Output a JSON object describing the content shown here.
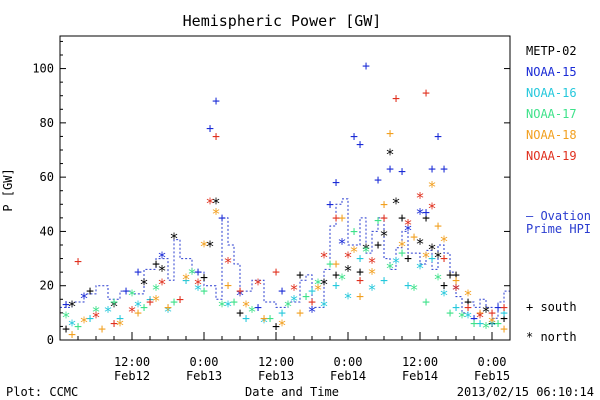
{
  "chart_data": {
    "type": "scatter",
    "title": "Hemispheric Power [GW]",
    "ylabel": "P [GW]",
    "xlabel": "Date and Time",
    "ylim": [
      0,
      112
    ],
    "xlim_hours": [
      0,
      75
    ],
    "yticks": [
      "0",
      "20",
      "40",
      "60",
      "80",
      "100"
    ],
    "xticks": [
      {
        "time": "12:00",
        "date": "Feb12",
        "hour": 12
      },
      {
        "time": "0:00",
        "date": "Feb13",
        "hour": 24
      },
      {
        "time": "12:00",
        "date": "Feb13",
        "hour": 36
      },
      {
        "time": "0:00",
        "date": "Feb14",
        "hour": 48
      },
      {
        "time": "12:00",
        "date": "Feb14",
        "hour": 60
      },
      {
        "time": "0:00",
        "date": "Feb15",
        "hour": 72
      }
    ],
    "series": [
      {
        "name": "METP-02",
        "color": "#000000"
      },
      {
        "name": "NOAA-15",
        "color": "#1a2bd6"
      },
      {
        "name": "NOAA-16",
        "color": "#25c8dc"
      },
      {
        "name": "NOAA-17",
        "color": "#3ee28a"
      },
      {
        "name": "NOAA-18",
        "color": "#f2a020"
      },
      {
        "name": "NOAA-19",
        "color": "#e0301e"
      }
    ],
    "ovation": {
      "label_line1": "— Ovation",
      "label_line2": "Prime HPI",
      "color": "#2a3cd0",
      "steps": [
        [
          0,
          12
        ],
        [
          2,
          14
        ],
        [
          4,
          17
        ],
        [
          6,
          20
        ],
        [
          8,
          15
        ],
        [
          10,
          18
        ],
        [
          12,
          17
        ],
        [
          14,
          26
        ],
        [
          16,
          30
        ],
        [
          18,
          22
        ],
        [
          19,
          37
        ],
        [
          20,
          30
        ],
        [
          22,
          25
        ],
        [
          24,
          20
        ],
        [
          26,
          15
        ],
        [
          27,
          45
        ],
        [
          28,
          35
        ],
        [
          29,
          28
        ],
        [
          30,
          18
        ],
        [
          32,
          22
        ],
        [
          34,
          14
        ],
        [
          36,
          12
        ],
        [
          38,
          14
        ],
        [
          40,
          22
        ],
        [
          41,
          24
        ],
        [
          42,
          12
        ],
        [
          44,
          26
        ],
        [
          45,
          42
        ],
        [
          46,
          50
        ],
        [
          47,
          52
        ],
        [
          48,
          35
        ],
        [
          50,
          45
        ],
        [
          51,
          32
        ],
        [
          52,
          40
        ],
        [
          53,
          45
        ],
        [
          54,
          30
        ],
        [
          55,
          26
        ],
        [
          56,
          34
        ],
        [
          57,
          40
        ],
        [
          58,
          32
        ],
        [
          60,
          28
        ],
        [
          61,
          33
        ],
        [
          62,
          26
        ],
        [
          63,
          35
        ],
        [
          64,
          32
        ],
        [
          65,
          25
        ],
        [
          66,
          16
        ],
        [
          67,
          10
        ],
        [
          68,
          14
        ],
        [
          69,
          12
        ],
        [
          70,
          15
        ],
        [
          71,
          12
        ],
        [
          72,
          8
        ],
        [
          73,
          14
        ],
        [
          74,
          18
        ],
        [
          75,
          18
        ]
      ]
    },
    "symbol_legend": [
      {
        "symbol": "+",
        "label": "south"
      },
      {
        "symbol": "*",
        "label": "north"
      }
    ],
    "points": {
      "METP-02": [
        [
          1,
          4,
          "+"
        ],
        [
          2,
          12,
          "*"
        ],
        [
          5,
          18,
          "+"
        ],
        [
          9,
          12,
          "*"
        ],
        [
          14,
          20,
          "*"
        ],
        [
          16,
          28,
          "+"
        ],
        [
          17,
          25,
          "*"
        ],
        [
          19,
          37,
          "*"
        ],
        [
          24,
          23,
          "+"
        ],
        [
          25,
          34,
          "*"
        ],
        [
          26,
          50,
          "*"
        ],
        [
          30,
          10,
          "+"
        ],
        [
          36,
          5,
          "+"
        ],
        [
          40,
          24,
          "+"
        ],
        [
          44,
          20,
          "*"
        ],
        [
          46,
          24,
          "+"
        ],
        [
          48,
          25,
          "*"
        ],
        [
          50,
          25,
          "+"
        ],
        [
          51,
          33,
          "*"
        ],
        [
          53,
          35,
          "+"
        ],
        [
          54,
          38,
          "*"
        ],
        [
          55,
          68,
          "*"
        ],
        [
          56,
          50,
          "*"
        ],
        [
          57,
          45,
          "+"
        ],
        [
          58,
          30,
          "+"
        ],
        [
          60,
          35,
          "*"
        ],
        [
          61,
          45,
          "+"
        ],
        [
          62,
          33,
          "*"
        ],
        [
          63,
          30,
          "*"
        ],
        [
          64,
          20,
          "+"
        ],
        [
          65,
          24,
          "+"
        ],
        [
          66,
          24,
          "+"
        ],
        [
          68,
          14,
          "+"
        ],
        [
          71,
          10,
          "*"
        ],
        [
          72,
          6,
          "+"
        ],
        [
          74,
          8,
          "+"
        ]
      ],
      "NOAA-15": [
        [
          1,
          13,
          "+"
        ],
        [
          4,
          15,
          "*"
        ],
        [
          11,
          18,
          "+"
        ],
        [
          13,
          25,
          "+"
        ],
        [
          17,
          30,
          "*"
        ],
        [
          23,
          25,
          "+"
        ],
        [
          25,
          78,
          "+"
        ],
        [
          26,
          88,
          "+"
        ],
        [
          27,
          45,
          "+"
        ],
        [
          30,
          16,
          "*"
        ],
        [
          33,
          12,
          "+"
        ],
        [
          37,
          18,
          "+"
        ],
        [
          42,
          10,
          "*"
        ],
        [
          45,
          50,
          "+"
        ],
        [
          46,
          58,
          "+"
        ],
        [
          47,
          35,
          "*"
        ],
        [
          49,
          75,
          "+"
        ],
        [
          50,
          72,
          "+"
        ],
        [
          51,
          101,
          "+"
        ],
        [
          53,
          59,
          "+"
        ],
        [
          55,
          63,
          "+"
        ],
        [
          57,
          62,
          "+"
        ],
        [
          58,
          40,
          "*"
        ],
        [
          60,
          46,
          "*"
        ],
        [
          61,
          47,
          "+"
        ],
        [
          62,
          63,
          "+"
        ],
        [
          63,
          75,
          "+"
        ],
        [
          64,
          63,
          "+"
        ],
        [
          66,
          18,
          "*"
        ],
        [
          69,
          8,
          "+"
        ],
        [
          73,
          12,
          "+"
        ]
      ],
      "NOAA-16": [
        [
          2,
          5,
          "*"
        ],
        [
          5,
          8,
          "+"
        ],
        [
          8,
          10,
          "*"
        ],
        [
          10,
          8,
          "+"
        ],
        [
          13,
          12,
          "*"
        ],
        [
          15,
          15,
          "+"
        ],
        [
          18,
          10,
          "*"
        ],
        [
          21,
          22,
          "+"
        ],
        [
          23,
          18,
          "*"
        ],
        [
          28,
          12,
          "*"
        ],
        [
          31,
          8,
          "+"
        ],
        [
          34,
          6,
          "*"
        ],
        [
          37,
          10,
          "+"
        ],
        [
          39,
          14,
          "*"
        ],
        [
          42,
          18,
          "+"
        ],
        [
          44,
          12,
          "*"
        ],
        [
          46,
          20,
          "+"
        ],
        [
          48,
          15,
          "*"
        ],
        [
          50,
          30,
          "+"
        ],
        [
          52,
          18,
          "*"
        ],
        [
          54,
          22,
          "+"
        ],
        [
          56,
          28,
          "*"
        ],
        [
          58,
          20,
          "+"
        ],
        [
          60,
          26,
          "*"
        ],
        [
          62,
          30,
          "+"
        ],
        [
          64,
          16,
          "*"
        ],
        [
          66,
          12,
          "+"
        ],
        [
          68,
          8,
          "*"
        ],
        [
          70,
          6,
          "+"
        ],
        [
          72,
          5,
          "*"
        ],
        [
          74,
          10,
          "+"
        ]
      ],
      "NOAA-17": [
        [
          1,
          8,
          "*"
        ],
        [
          3,
          5,
          "+"
        ],
        [
          6,
          10,
          "*"
        ],
        [
          9,
          14,
          "+"
        ],
        [
          12,
          16,
          "*"
        ],
        [
          14,
          12,
          "+"
        ],
        [
          16,
          18,
          "*"
        ],
        [
          19,
          14,
          "+"
        ],
        [
          22,
          24,
          "*"
        ],
        [
          24,
          18,
          "+"
        ],
        [
          27,
          12,
          "*"
        ],
        [
          29,
          14,
          "+"
        ],
        [
          32,
          10,
          "*"
        ],
        [
          35,
          8,
          "+"
        ],
        [
          38,
          12,
          "*"
        ],
        [
          41,
          16,
          "+"
        ],
        [
          43,
          20,
          "*"
        ],
        [
          45,
          28,
          "+"
        ],
        [
          47,
          22,
          "*"
        ],
        [
          49,
          40,
          "+"
        ],
        [
          51,
          32,
          "*"
        ],
        [
          53,
          44,
          "+"
        ],
        [
          55,
          26,
          "*"
        ],
        [
          57,
          32,
          "+"
        ],
        [
          59,
          18,
          "*"
        ],
        [
          61,
          14,
          "+"
        ],
        [
          63,
          22,
          "*"
        ],
        [
          65,
          10,
          "+"
        ],
        [
          67,
          8,
          "*"
        ],
        [
          69,
          6,
          "+"
        ],
        [
          71,
          4,
          "*"
        ],
        [
          73,
          6,
          "+"
        ]
      ],
      "NOAA-18": [
        [
          2,
          2,
          "+"
        ],
        [
          4,
          6,
          "*"
        ],
        [
          7,
          4,
          "+"
        ],
        [
          10,
          5,
          "*"
        ],
        [
          13,
          10,
          "+"
        ],
        [
          16,
          14,
          "*"
        ],
        [
          18,
          12,
          "+"
        ],
        [
          21,
          22,
          "*"
        ],
        [
          24,
          34,
          "*"
        ],
        [
          26,
          46,
          "*"
        ],
        [
          28,
          20,
          "+"
        ],
        [
          31,
          12,
          "*"
        ],
        [
          34,
          8,
          "+"
        ],
        [
          37,
          5,
          "*"
        ],
        [
          40,
          10,
          "+"
        ],
        [
          43,
          18,
          "*"
        ],
        [
          46,
          28,
          "+"
        ],
        [
          47,
          45,
          "+"
        ],
        [
          49,
          32,
          "*"
        ],
        [
          50,
          16,
          "+"
        ],
        [
          52,
          24,
          "*"
        ],
        [
          54,
          50,
          "+"
        ],
        [
          55,
          76,
          "+"
        ],
        [
          57,
          34,
          "*"
        ],
        [
          59,
          38,
          "+"
        ],
        [
          61,
          30,
          "*"
        ],
        [
          62,
          56,
          "*"
        ],
        [
          63,
          42,
          "+"
        ],
        [
          64,
          36,
          "*"
        ],
        [
          66,
          22,
          "+"
        ],
        [
          68,
          16,
          "*"
        ],
        [
          70,
          10,
          "+"
        ],
        [
          72,
          6,
          "*"
        ],
        [
          74,
          4,
          "+"
        ]
      ],
      "NOAA-19": [
        [
          3,
          29,
          "+"
        ],
        [
          6,
          8,
          "*"
        ],
        [
          9,
          6,
          "+"
        ],
        [
          12,
          10,
          "*"
        ],
        [
          15,
          14,
          "+"
        ],
        [
          17,
          20,
          "*"
        ],
        [
          20,
          15,
          "+"
        ],
        [
          23,
          20,
          "*"
        ],
        [
          25,
          50,
          "*"
        ],
        [
          26,
          75,
          "+"
        ],
        [
          28,
          28,
          "*"
        ],
        [
          30,
          18,
          "+"
        ],
        [
          33,
          20,
          "*"
        ],
        [
          36,
          25,
          "+"
        ],
        [
          39,
          18,
          "*"
        ],
        [
          42,
          14,
          "+"
        ],
        [
          44,
          30,
          "*"
        ],
        [
          46,
          45,
          "+"
        ],
        [
          48,
          30,
          "*"
        ],
        [
          50,
          22,
          "+"
        ],
        [
          52,
          28,
          "*"
        ],
        [
          54,
          45,
          "+"
        ],
        [
          56,
          89,
          "+"
        ],
        [
          58,
          42,
          "*"
        ],
        [
          60,
          52,
          "*"
        ],
        [
          61,
          91,
          "+"
        ],
        [
          62,
          48,
          "*"
        ],
        [
          64,
          30,
          "+"
        ],
        [
          66,
          18,
          "*"
        ],
        [
          68,
          12,
          "+"
        ],
        [
          70,
          8,
          "*"
        ],
        [
          72,
          10,
          "+"
        ],
        [
          74,
          12,
          "+"
        ]
      ]
    }
  },
  "footer": {
    "plot_credit": "Plot: CCMC",
    "timestamp": "2013/02/15 06:10:14"
  }
}
